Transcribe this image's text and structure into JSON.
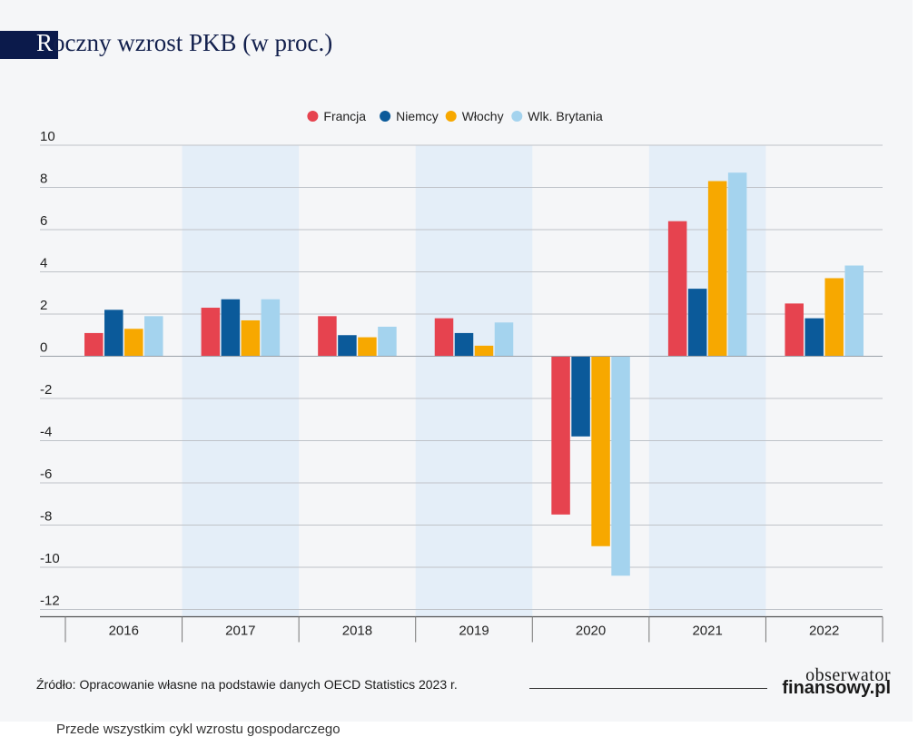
{
  "header": {
    "title_initial": "R",
    "title_rest": "oczny wzrost PKB (w proc.)"
  },
  "chart_data": {
    "type": "bar",
    "title": "Roczny wzrost PKB (w proc.)",
    "xlabel": "",
    "ylabel": "",
    "ylim": [
      -12,
      10
    ],
    "yticks": [
      10,
      8,
      6,
      4,
      2,
      0,
      -2,
      -4,
      -6,
      -8,
      -10,
      -12
    ],
    "ytick_labels": [
      "10",
      "8",
      "6",
      "4",
      "2",
      "0",
      "-2",
      "-4",
      "-6",
      "-8",
      "-10",
      "-12"
    ],
    "categories": [
      "2016",
      "2017",
      "2018",
      "2019",
      "2020",
      "2021",
      "2022"
    ],
    "legend_position": "top-center",
    "grid": true,
    "series": [
      {
        "name": "Francja",
        "color": "#e6434f",
        "values": [
          1.1,
          2.3,
          1.9,
          1.8,
          -7.5,
          6.4,
          2.5
        ]
      },
      {
        "name": "Niemcy",
        "color": "#0b5a9a",
        "values": [
          2.2,
          2.7,
          1.0,
          1.1,
          -3.8,
          3.2,
          1.8
        ]
      },
      {
        "name": "Włochy",
        "color": "#f7a800",
        "values": [
          1.3,
          1.7,
          0.9,
          0.5,
          -9.0,
          8.3,
          3.7
        ]
      },
      {
        "name": "Wlk. Brytania",
        "color": "#a4d3ee",
        "values": [
          1.9,
          2.7,
          1.4,
          1.6,
          -10.4,
          8.7,
          4.3
        ]
      }
    ]
  },
  "footer": {
    "source": "Źródło: Opracowanie własne na podstawie danych OECD Statistics 2023 r.",
    "logo_line1": "obserwator",
    "logo_line2": "finansowy.pl",
    "caption": "Przede wszystkim cykl wzrostu gospodarczego"
  },
  "colors": {
    "title_bar": "#0b1a4b",
    "band": "#e4eef8"
  }
}
